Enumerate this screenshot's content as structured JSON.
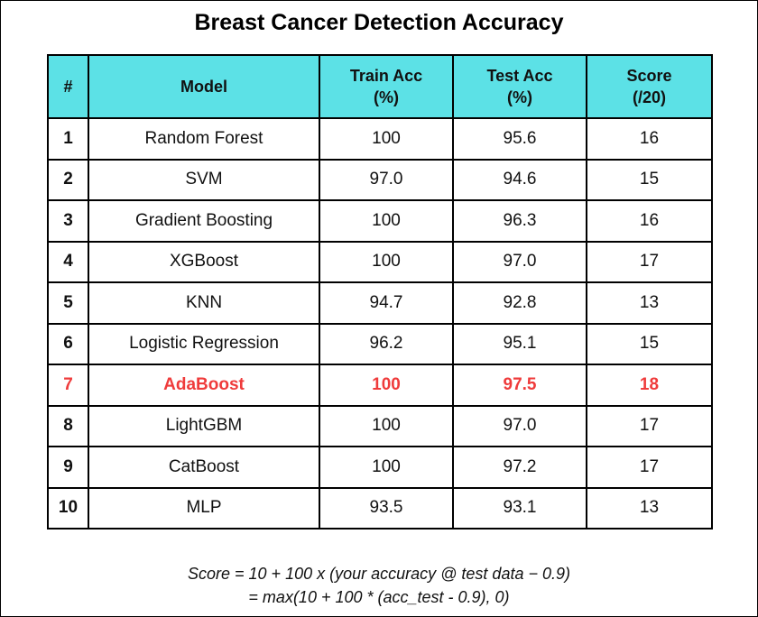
{
  "title": "Breast Cancer Detection Accuracy",
  "table": {
    "headers": {
      "rank": "#",
      "model": "Model",
      "train_line1": "Train Acc",
      "train_line2": "(%)",
      "test_line1": "Test Acc",
      "test_line2": "(%)",
      "score_line1": "Score",
      "score_line2": "(/20)"
    },
    "rows": [
      {
        "rank": "1",
        "model": "Random Forest",
        "train": "100",
        "test": "95.6",
        "score": "16"
      },
      {
        "rank": "2",
        "model": "SVM",
        "train": "97.0",
        "test": "94.6",
        "score": "15"
      },
      {
        "rank": "3",
        "model": "Gradient Boosting",
        "train": "100",
        "test": "96.3",
        "score": "16"
      },
      {
        "rank": "4",
        "model": "XGBoost",
        "train": "100",
        "test": "97.0",
        "score": "17"
      },
      {
        "rank": "5",
        "model": "KNN",
        "train": "94.7",
        "test": "92.8",
        "score": "13"
      },
      {
        "rank": "6",
        "model": "Logistic Regression",
        "train": "96.2",
        "test": "95.1",
        "score": "15"
      },
      {
        "rank": "7",
        "model": "AdaBoost",
        "train": "100",
        "test": "97.5",
        "score": "18"
      },
      {
        "rank": "8",
        "model": "LightGBM",
        "train": "100",
        "test": "97.0",
        "score": "17"
      },
      {
        "rank": "9",
        "model": "CatBoost",
        "train": "100",
        "test": "97.2",
        "score": "17"
      },
      {
        "rank": "10",
        "model": "MLP",
        "train": "93.5",
        "test": "93.1",
        "score": "13"
      }
    ]
  },
  "highlight_color": "#ef3b3b",
  "header_color": "#5ce1e6",
  "formula": {
    "line1": "Score = 10 + 100 x (your accuracy @ test data − 0.9)",
    "line2": "= max(10 + 100 * (acc_test - 0.9), 0)"
  }
}
